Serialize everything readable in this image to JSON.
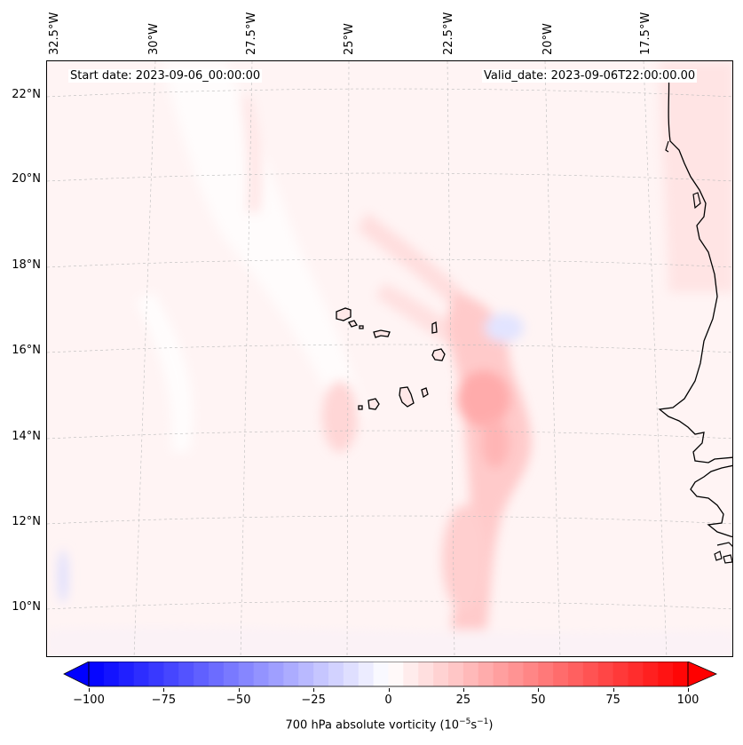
{
  "header": {
    "start_date": "Start date: 2023-09-06_00:00:00",
    "valid_date": "Valid_date: 2023-09-06T22:00:00.00"
  },
  "longitude_labels": [
    "32.5°W",
    "30°W",
    "27.5°W",
    "25°W",
    "22.5°W",
    "20°W",
    "17.5°W"
  ],
  "latitude_labels": [
    "22°N",
    "20°N",
    "18°N",
    "16°N",
    "14°N",
    "12°N",
    "10°N"
  ],
  "colorbar": {
    "ticks": [
      "−100",
      "−75",
      "−50",
      "−25",
      "0",
      "25",
      "50",
      "75",
      "100"
    ],
    "label_prefix": "700 hPa absolute vorticity (10",
    "label_exp1": "−5",
    "label_mid": "s",
    "label_exp2": "−1",
    "label_suffix": ")",
    "min": -100,
    "max": 100,
    "colors": {
      "negative": "#0000ff",
      "zero": "#ffffff",
      "positive": "#ff0000"
    }
  },
  "colors": {
    "coastline": "#000000",
    "gridline": "#bbbbbb",
    "field_base": "#fff6f6"
  }
}
